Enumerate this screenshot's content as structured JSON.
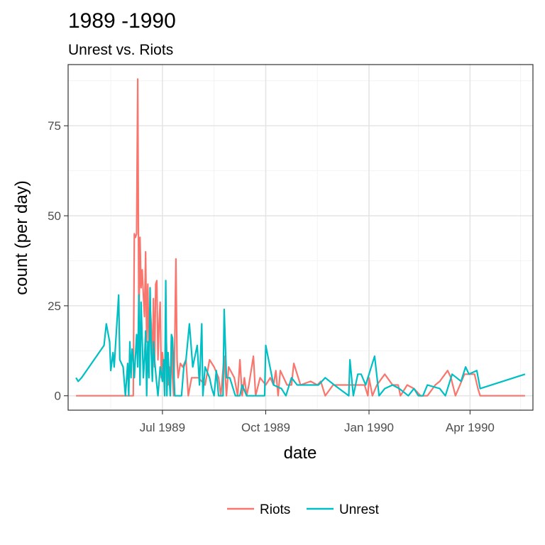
{
  "chart_data": {
    "type": "line",
    "title": "1989 -1990",
    "subtitle": "Unrest vs. Riots",
    "xlabel": "date",
    "ylabel": "count (per day)",
    "x_ticks": [
      "Jul 1989",
      "Oct 1989",
      "Jan 1990",
      "Apr 1990"
    ],
    "y_ticks": [
      0,
      25,
      50,
      75
    ],
    "xlim": [
      "1989-04-08",
      "1990-05-27"
    ],
    "ylim": [
      -4,
      92
    ],
    "grid": true,
    "legend_position": "bottom",
    "series": [
      {
        "name": "Riots",
        "color": "#F8766D",
        "points": [
          [
            "1989-04-15",
            0
          ],
          [
            "1989-05-20",
            0
          ],
          [
            "1989-06-05",
            0
          ],
          [
            "1989-06-06",
            45
          ],
          [
            "1989-06-07",
            44
          ],
          [
            "1989-06-08",
            45
          ],
          [
            "1989-06-09",
            88
          ],
          [
            "1989-06-10",
            18
          ],
          [
            "1989-06-11",
            44
          ],
          [
            "1989-06-12",
            30
          ],
          [
            "1989-06-13",
            35
          ],
          [
            "1989-06-14",
            28
          ],
          [
            "1989-06-15",
            22
          ],
          [
            "1989-06-16",
            40
          ],
          [
            "1989-06-17",
            15
          ],
          [
            "1989-06-18",
            31
          ],
          [
            "1989-06-19",
            12
          ],
          [
            "1989-06-20",
            25
          ],
          [
            "1989-06-21",
            20
          ],
          [
            "1989-06-22",
            5
          ],
          [
            "1989-06-23",
            27
          ],
          [
            "1989-06-24",
            8
          ],
          [
            "1989-06-25",
            31
          ],
          [
            "1989-06-26",
            32
          ],
          [
            "1989-06-27",
            10
          ],
          [
            "1989-06-28",
            20
          ],
          [
            "1989-06-29",
            26
          ],
          [
            "1989-06-30",
            5
          ],
          [
            "1989-07-01",
            12
          ],
          [
            "1989-07-02",
            8
          ],
          [
            "1989-07-03",
            0
          ],
          [
            "1989-07-04",
            21
          ],
          [
            "1989-07-05",
            10
          ],
          [
            "1989-07-06",
            3
          ],
          [
            "1989-07-07",
            8
          ],
          [
            "1989-07-08",
            0
          ],
          [
            "1989-07-09",
            17
          ],
          [
            "1989-07-10",
            5
          ],
          [
            "1989-07-11",
            0
          ],
          [
            "1989-07-12",
            15
          ],
          [
            "1989-07-13",
            38
          ],
          [
            "1989-07-14",
            10
          ],
          [
            "1989-07-15",
            5
          ],
          [
            "1989-07-17",
            9
          ],
          [
            "1989-07-19",
            8
          ],
          [
            "1989-07-22",
            10
          ],
          [
            "1989-07-24",
            0
          ],
          [
            "1989-07-27",
            5
          ],
          [
            "1989-08-02",
            5
          ],
          [
            "1989-08-08",
            3
          ],
          [
            "1989-08-12",
            10
          ],
          [
            "1989-08-16",
            8
          ],
          [
            "1989-08-20",
            5
          ],
          [
            "1989-08-22",
            0
          ],
          [
            "1989-08-25",
            11
          ],
          [
            "1989-08-27",
            0
          ],
          [
            "1989-08-29",
            8
          ],
          [
            "1989-09-03",
            5
          ],
          [
            "1989-09-06",
            0
          ],
          [
            "1989-09-08",
            10
          ],
          [
            "1989-09-10",
            0
          ],
          [
            "1989-09-12",
            5
          ],
          [
            "1989-09-14",
            0
          ],
          [
            "1989-09-16",
            3
          ],
          [
            "1989-09-20",
            11
          ],
          [
            "1989-09-22",
            0
          ],
          [
            "1989-09-26",
            5
          ],
          [
            "1989-10-01",
            3
          ],
          [
            "1989-10-05",
            5
          ],
          [
            "1989-10-08",
            3
          ],
          [
            "1989-10-10",
            7
          ],
          [
            "1989-10-12",
            0
          ],
          [
            "1989-10-14",
            7
          ],
          [
            "1989-10-20",
            3
          ],
          [
            "1989-10-24",
            3
          ],
          [
            "1989-10-26",
            9
          ],
          [
            "1989-11-01",
            3
          ],
          [
            "1989-11-10",
            4
          ],
          [
            "1989-11-16",
            3
          ],
          [
            "1989-11-19",
            4
          ],
          [
            "1989-11-23",
            0
          ],
          [
            "1989-11-30",
            3
          ],
          [
            "1989-12-15",
            3
          ],
          [
            "1989-12-28",
            3
          ],
          [
            "1989-12-31",
            0
          ],
          [
            "1990-01-01",
            5
          ],
          [
            "1990-01-04",
            0
          ],
          [
            "1990-01-08",
            3
          ],
          [
            "1990-01-15",
            6
          ],
          [
            "1990-01-22",
            3
          ],
          [
            "1990-01-27",
            3
          ],
          [
            "1990-01-29",
            0
          ],
          [
            "1990-02-04",
            3
          ],
          [
            "1990-02-10",
            2
          ],
          [
            "1990-02-16",
            0
          ],
          [
            "1990-02-22",
            0
          ],
          [
            "1990-03-01",
            3
          ],
          [
            "1990-03-05",
            4
          ],
          [
            "1990-03-12",
            7
          ],
          [
            "1990-03-15",
            5
          ],
          [
            "1990-03-19",
            0
          ],
          [
            "1990-03-23",
            3
          ],
          [
            "1990-03-27",
            6
          ],
          [
            "1990-04-05",
            6
          ],
          [
            "1990-04-08",
            2
          ],
          [
            "1990-04-10",
            0
          ],
          [
            "1990-05-20",
            0
          ]
        ]
      },
      {
        "name": "Unrest",
        "color": "#00BFC4",
        "points": [
          [
            "1989-04-15",
            5
          ],
          [
            "1989-04-17",
            4
          ],
          [
            "1989-04-20",
            5
          ],
          [
            "1989-05-10",
            14
          ],
          [
            "1989-05-12",
            20
          ],
          [
            "1989-05-15",
            15
          ],
          [
            "1989-05-16",
            7
          ],
          [
            "1989-05-18",
            12
          ],
          [
            "1989-05-19",
            8
          ],
          [
            "1989-05-23",
            28
          ],
          [
            "1989-05-24",
            10
          ],
          [
            "1989-05-27",
            8
          ],
          [
            "1989-05-29",
            0
          ],
          [
            "1989-05-31",
            9
          ],
          [
            "1989-06-01",
            0
          ],
          [
            "1989-06-02",
            15
          ],
          [
            "1989-06-03",
            5
          ],
          [
            "1989-06-04",
            13
          ],
          [
            "1989-06-05",
            10
          ],
          [
            "1989-06-06",
            5
          ],
          [
            "1989-06-08",
            17
          ],
          [
            "1989-06-09",
            8
          ],
          [
            "1989-06-10",
            28
          ],
          [
            "1989-06-11",
            3
          ],
          [
            "1989-06-12",
            26
          ],
          [
            "1989-06-14",
            5
          ],
          [
            "1989-06-15",
            10
          ],
          [
            "1989-06-16",
            18
          ],
          [
            "1989-06-17",
            0
          ],
          [
            "1989-06-18",
            15
          ],
          [
            "1989-06-19",
            5
          ],
          [
            "1989-06-20",
            30
          ],
          [
            "1989-06-21",
            12
          ],
          [
            "1989-06-22",
            4
          ],
          [
            "1989-06-23",
            15
          ],
          [
            "1989-06-24",
            10
          ],
          [
            "1989-06-26",
            3
          ],
          [
            "1989-06-27",
            0
          ],
          [
            "1989-06-28",
            4
          ],
          [
            "1989-06-29",
            8
          ],
          [
            "1989-07-01",
            4
          ],
          [
            "1989-07-02",
            10
          ],
          [
            "1989-07-03",
            0
          ],
          [
            "1989-07-04",
            32
          ],
          [
            "1989-07-05",
            0
          ],
          [
            "1989-07-06",
            12
          ],
          [
            "1989-07-07",
            5
          ],
          [
            "1989-07-08",
            0
          ],
          [
            "1989-07-09",
            17
          ],
          [
            "1989-07-10",
            16
          ],
          [
            "1989-07-11",
            8
          ],
          [
            "1989-07-12",
            0
          ],
          [
            "1989-07-16",
            0
          ],
          [
            "1989-07-18",
            0
          ],
          [
            "1989-07-20",
            8
          ],
          [
            "1989-07-22",
            10
          ],
          [
            "1989-07-25",
            20
          ],
          [
            "1989-07-28",
            8
          ],
          [
            "1989-08-01",
            14
          ],
          [
            "1989-08-03",
            3
          ],
          [
            "1989-08-05",
            20
          ],
          [
            "1989-08-06",
            0
          ],
          [
            "1989-08-08",
            8
          ],
          [
            "1989-08-12",
            5
          ],
          [
            "1989-08-14",
            2
          ],
          [
            "1989-08-16",
            0
          ],
          [
            "1989-08-18",
            7
          ],
          [
            "1989-08-20",
            0
          ],
          [
            "1989-08-22",
            0
          ],
          [
            "1989-08-24",
            0
          ],
          [
            "1989-08-25",
            24
          ],
          [
            "1989-08-27",
            5
          ],
          [
            "1989-08-30",
            5
          ],
          [
            "1989-09-04",
            0
          ],
          [
            "1989-09-08",
            0
          ],
          [
            "1989-09-10",
            3
          ],
          [
            "1989-09-14",
            0
          ],
          [
            "1989-09-18",
            0
          ],
          [
            "1989-09-22",
            0
          ],
          [
            "1989-09-30",
            0
          ],
          [
            "1989-10-01",
            14
          ],
          [
            "1989-10-08",
            3
          ],
          [
            "1989-10-15",
            2
          ],
          [
            "1989-10-19",
            0
          ],
          [
            "1989-10-24",
            5
          ],
          [
            "1989-10-29",
            3
          ],
          [
            "1989-11-03",
            3
          ],
          [
            "1989-11-10",
            3
          ],
          [
            "1989-11-17",
            3
          ],
          [
            "1989-11-23",
            5
          ],
          [
            "1989-12-01",
            3
          ],
          [
            "1989-12-14",
            0
          ],
          [
            "1989-12-15",
            10
          ],
          [
            "1989-12-18",
            0
          ],
          [
            "1989-12-22",
            6
          ],
          [
            "1989-12-25",
            6
          ],
          [
            "1989-12-29",
            3
          ],
          [
            "1990-01-06",
            11
          ],
          [
            "1990-01-10",
            0
          ],
          [
            "1990-01-15",
            2
          ],
          [
            "1990-01-22",
            3
          ],
          [
            "1990-01-28",
            2
          ],
          [
            "1990-02-05",
            0
          ],
          [
            "1990-02-10",
            2
          ],
          [
            "1990-02-14",
            0
          ],
          [
            "1990-02-18",
            0
          ],
          [
            "1990-02-22",
            3
          ],
          [
            "1990-03-05",
            2
          ],
          [
            "1990-03-10",
            0
          ],
          [
            "1990-03-16",
            6
          ],
          [
            "1990-03-20",
            5
          ],
          [
            "1990-03-24",
            4
          ],
          [
            "1990-03-28",
            8
          ],
          [
            "1990-03-31",
            6
          ],
          [
            "1990-04-07",
            7
          ],
          [
            "1990-04-10",
            2
          ],
          [
            "1990-05-20",
            6
          ]
        ]
      }
    ]
  }
}
